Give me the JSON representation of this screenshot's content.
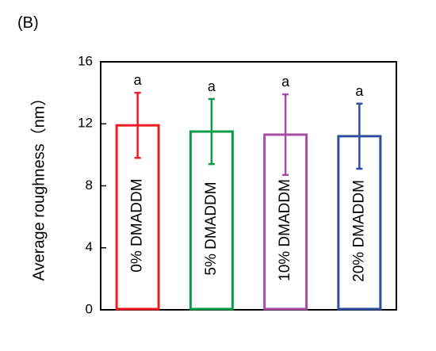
{
  "panel_label": "(B)",
  "chart_data": {
    "type": "bar",
    "title": "",
    "xlabel": "",
    "ylabel": "Average roughness（nm）",
    "ylim": [
      0,
      16
    ],
    "yticks": [
      0,
      4,
      8,
      12,
      16
    ],
    "grid": false,
    "categories": [
      "0% DMADDM",
      "5% DMADDM",
      "10% DMADDM",
      "20% DMADDM"
    ],
    "values": [
      11.9,
      11.5,
      11.3,
      11.2
    ],
    "errors": [
      2.1,
      2.1,
      2.6,
      2.1
    ],
    "significance": [
      "a",
      "a",
      "a",
      "a"
    ],
    "colors": [
      "#ee1c25",
      "#0c9b4b",
      "#a64da6",
      "#2d4f9e"
    ]
  }
}
